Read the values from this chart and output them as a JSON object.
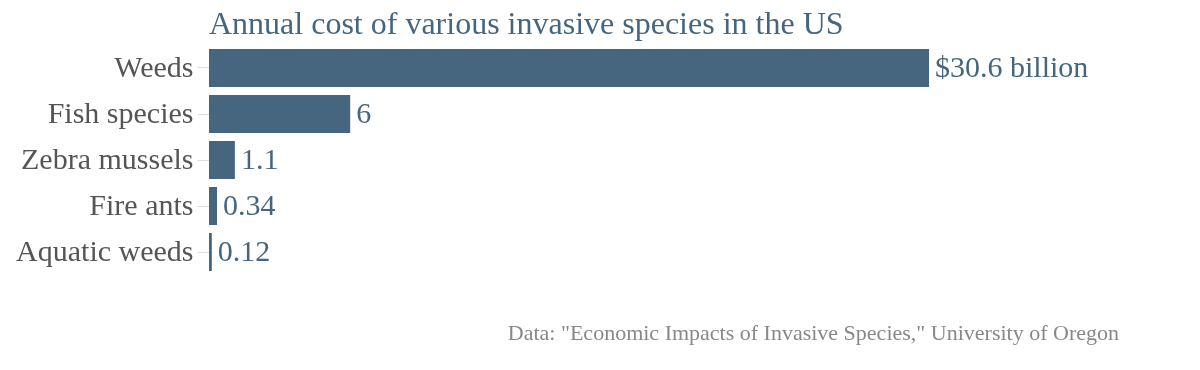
{
  "chart_data": {
    "type": "bar",
    "orientation": "horizontal",
    "title": "Annual cost of various invasive species in the US",
    "categories": [
      "Weeds",
      "Fish species",
      "Zebra mussels",
      "Fire ants",
      "Aquatic weeds"
    ],
    "values": [
      30.6,
      6,
      1.1,
      0.34,
      0.12
    ],
    "value_labels": [
      "$30.6 billion",
      "6",
      "1.1",
      "0.34",
      "0.12"
    ],
    "color": "#46667f",
    "annotations": [
      "Data: \"Economic Impacts of Invasive Species,\" University of Oregon"
    ]
  }
}
